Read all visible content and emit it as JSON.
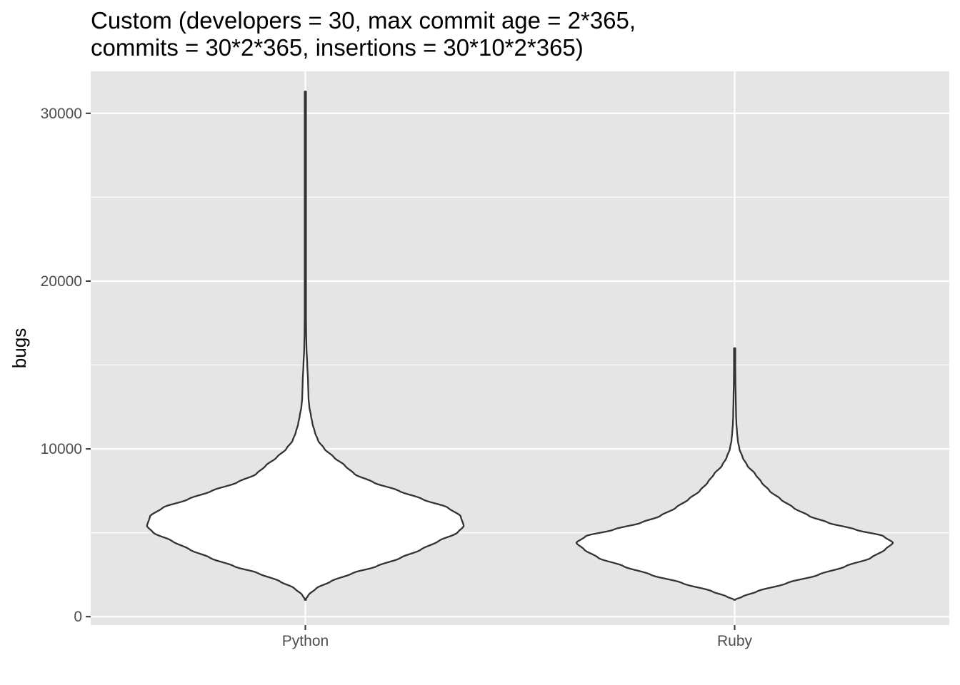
{
  "chart_data": {
    "type": "violin",
    "title_lines": [
      "Custom (developers = 30, max commit age = 2*365,",
      "commits = 30*2*365, insertions = 30*10*2*365)"
    ],
    "xlabel": "",
    "ylabel": "bugs",
    "categories": [
      "Python",
      "Ruby"
    ],
    "ylim": [
      -500,
      32500
    ],
    "y_ticks": [
      0,
      10000,
      20000,
      30000
    ],
    "y_tick_labels": [
      "0",
      "10000",
      "20000",
      "30000"
    ],
    "grid": true,
    "colors": {
      "panel_bg": "#e5e5e5",
      "grid": "#ffffff",
      "violin_fill": "#ffffff",
      "violin_stroke": "#333333"
    },
    "series": [
      {
        "category": "Python",
        "min": 1000,
        "max": 31300,
        "density_profile": [
          [
            1000,
            0.0
          ],
          [
            1300,
            0.02
          ],
          [
            1700,
            0.07
          ],
          [
            2100,
            0.16
          ],
          [
            2600,
            0.3
          ],
          [
            3000,
            0.45
          ],
          [
            3500,
            0.6
          ],
          [
            4000,
            0.73
          ],
          [
            4500,
            0.84
          ],
          [
            5000,
            0.96
          ],
          [
            5400,
            1.0
          ],
          [
            6000,
            0.98
          ],
          [
            6500,
            0.9
          ],
          [
            7000,
            0.74
          ],
          [
            7500,
            0.59
          ],
          [
            8000,
            0.43
          ],
          [
            8500,
            0.31
          ],
          [
            9000,
            0.25
          ],
          [
            9500,
            0.18
          ],
          [
            10000,
            0.12
          ],
          [
            10500,
            0.08
          ],
          [
            11000,
            0.06
          ],
          [
            11500,
            0.045
          ],
          [
            12000,
            0.035
          ],
          [
            12500,
            0.025
          ],
          [
            13000,
            0.02
          ],
          [
            14000,
            0.017
          ],
          [
            15000,
            0.012
          ],
          [
            16000,
            0.007
          ],
          [
            17000,
            0.005
          ],
          [
            18000,
            0.004
          ],
          [
            20000,
            0.003
          ],
          [
            25000,
            0.002
          ],
          [
            29000,
            0.0015
          ],
          [
            31300,
            0.0
          ]
        ]
      },
      {
        "category": "Ruby",
        "min": 1000,
        "max": 16000,
        "density_profile": [
          [
            1000,
            0.0
          ],
          [
            1200,
            0.05
          ],
          [
            1500,
            0.14
          ],
          [
            2000,
            0.33
          ],
          [
            2500,
            0.53
          ],
          [
            3000,
            0.7
          ],
          [
            3500,
            0.86
          ],
          [
            4000,
            0.95
          ],
          [
            4400,
            1.0
          ],
          [
            4800,
            0.94
          ],
          [
            5200,
            0.76
          ],
          [
            5600,
            0.59
          ],
          [
            6000,
            0.47
          ],
          [
            6500,
            0.37
          ],
          [
            7000,
            0.29
          ],
          [
            7500,
            0.22
          ],
          [
            8000,
            0.17
          ],
          [
            8500,
            0.13
          ],
          [
            9000,
            0.08
          ],
          [
            9500,
            0.05
          ],
          [
            10000,
            0.03
          ],
          [
            10500,
            0.02
          ],
          [
            11000,
            0.015
          ],
          [
            11500,
            0.011
          ],
          [
            12000,
            0.009
          ],
          [
            13000,
            0.007
          ],
          [
            14000,
            0.005
          ],
          [
            15000,
            0.004
          ],
          [
            16000,
            0.0
          ]
        ]
      }
    ]
  }
}
